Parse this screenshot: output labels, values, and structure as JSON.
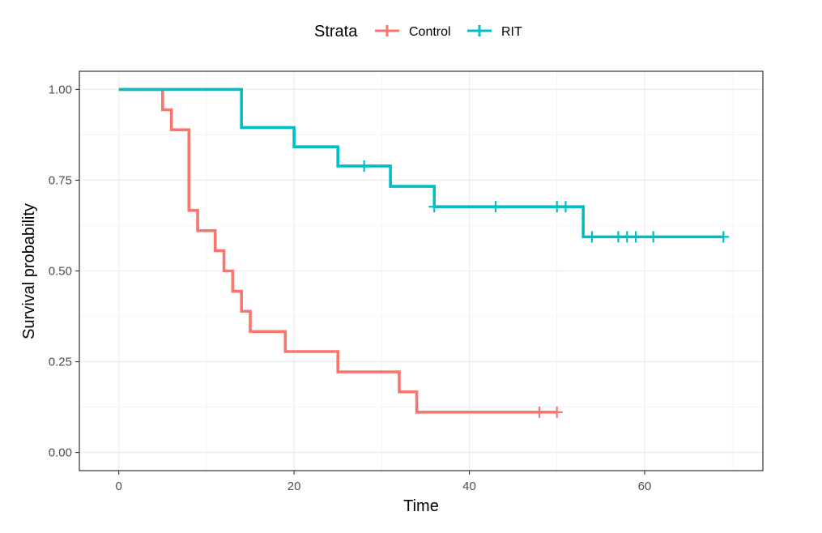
{
  "chart_data": {
    "type": "line",
    "subtype": "kaplan-meier-step",
    "title": "",
    "xlabel": "Time",
    "ylabel": "Survival probability",
    "xlim": [
      -4.5,
      73.5
    ],
    "ylim": [
      -0.05,
      1.05
    ],
    "x_ticks": [
      0,
      20,
      40,
      60
    ],
    "x_tick_labels": [
      "0",
      "20",
      "40",
      "60"
    ],
    "y_ticks": [
      0,
      0.25,
      0.5,
      0.75,
      1
    ],
    "y_tick_labels": [
      "0.00",
      "0.25",
      "0.50",
      "0.75",
      "1.00"
    ],
    "grid": true,
    "legend": {
      "title": "Strata",
      "position": "top"
    },
    "series": [
      {
        "name": "Control",
        "color": "#F8766D",
        "steps": [
          [
            0,
            1.0
          ],
          [
            5,
            0.944
          ],
          [
            6,
            0.889
          ],
          [
            8,
            0.667
          ],
          [
            9,
            0.611
          ],
          [
            11,
            0.556
          ],
          [
            12,
            0.5
          ],
          [
            13,
            0.444
          ],
          [
            14,
            0.389
          ],
          [
            15,
            0.333
          ],
          [
            19,
            0.278
          ],
          [
            25,
            0.222
          ],
          [
            32,
            0.167
          ],
          [
            34,
            0.111
          ]
        ],
        "end_x": 50,
        "censored": [
          [
            48,
            0.111
          ],
          [
            50,
            0.111
          ]
        ]
      },
      {
        "name": "RIT",
        "color": "#00BFC4",
        "steps": [
          [
            0,
            1.0
          ],
          [
            14,
            0.895
          ],
          [
            20,
            0.842
          ],
          [
            25,
            0.789
          ],
          [
            31,
            0.733
          ],
          [
            36,
            0.677
          ],
          [
            53,
            0.594
          ]
        ],
        "end_x": 69,
        "censored": [
          [
            28,
            0.789
          ],
          [
            36,
            0.677
          ],
          [
            43,
            0.677
          ],
          [
            50,
            0.677
          ],
          [
            51,
            0.677
          ],
          [
            54,
            0.594
          ],
          [
            57,
            0.594
          ],
          [
            58,
            0.594
          ],
          [
            59,
            0.594
          ],
          [
            61,
            0.594
          ],
          [
            69,
            0.594
          ]
        ]
      }
    ]
  }
}
